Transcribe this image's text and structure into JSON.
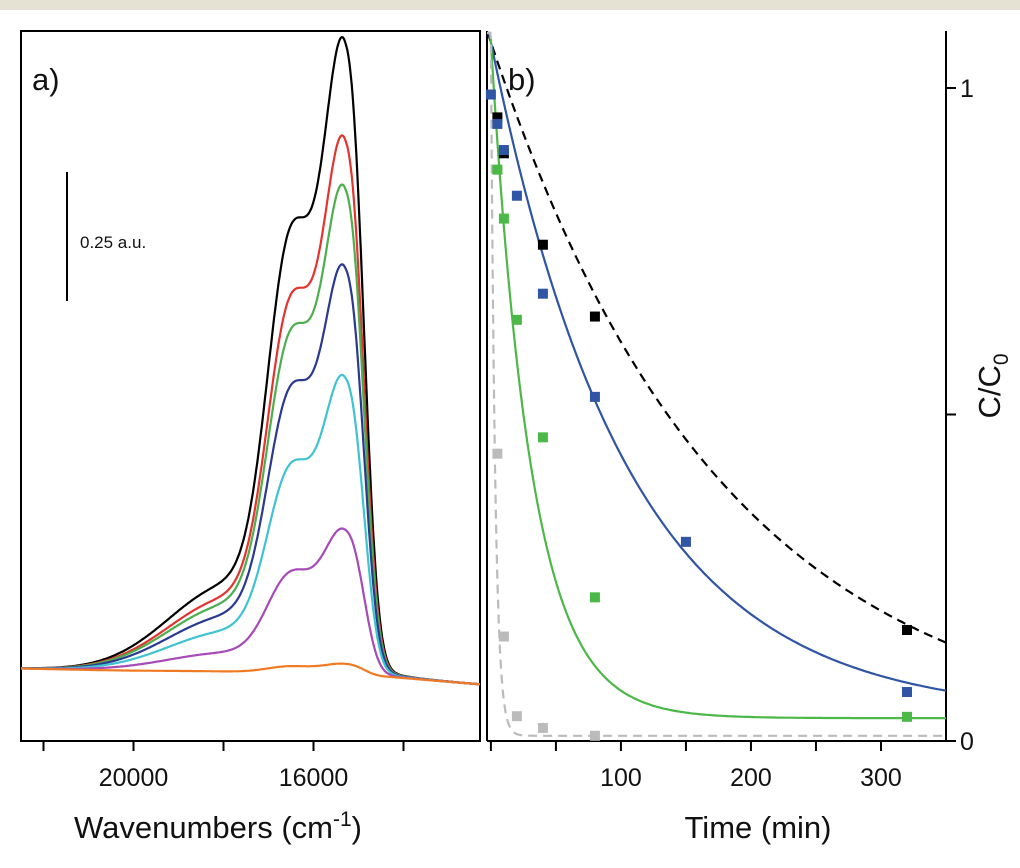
{
  "chart_data": [
    {
      "type": "line",
      "panel_label": "a)",
      "xlabel_base": "Wavenumbers (cm",
      "xlabel_sup": "-1",
      "xlabel_close": ")",
      "xlim": [
        22500,
        12300
      ],
      "x_ticks": [
        20000,
        16000
      ],
      "x_tick_labels": [
        "20000",
        "16000"
      ],
      "scale_bar_label": "0.25 a.u.",
      "colors": {
        "axis": "#000000"
      },
      "series": [
        {
          "color": "#000000",
          "peak": 1.04
        },
        {
          "color": "#e3342f",
          "peak": 0.88
        },
        {
          "color": "#4cae4c",
          "peak": 0.8
        },
        {
          "color": "#2b3990",
          "peak": 0.67
        },
        {
          "color": "#3fc3d0",
          "peak": 0.49
        },
        {
          "color": "#a64ab8",
          "peak": 0.24
        },
        {
          "color": "#f07a24",
          "peak": 0.02
        }
      ]
    },
    {
      "type": "scatter",
      "panel_label": "b)",
      "xlabel": "Time (min)",
      "ylabel_base": "C/C",
      "ylabel_sub": "0",
      "xlim": [
        -3,
        350
      ],
      "ylim": [
        0,
        1
      ],
      "x_ticks": [
        100,
        200,
        300
      ],
      "x_tick_labels": [
        "100",
        "200",
        "300"
      ],
      "y_ticks": [
        0,
        1
      ],
      "y_tick_labels": [
        "0",
        "1"
      ],
      "series": [
        {
          "color": "#000000",
          "dashed": true,
          "fit_k": 0.0056,
          "fit_c_inf": 0,
          "points": [
            [
              5,
              0.955
            ],
            [
              10,
              0.9
            ],
            [
              40,
              0.76
            ],
            [
              80,
              0.65
            ],
            [
              320,
              0.17
            ]
          ]
        },
        {
          "color": "#2f55a4",
          "dashed": false,
          "fit_k": 0.0095,
          "fit_c_inf": 0.04,
          "points": [
            [
              0,
              0.99
            ],
            [
              5,
              0.945
            ],
            [
              10,
              0.905
            ],
            [
              20,
              0.835
            ],
            [
              40,
              0.685
            ],
            [
              80,
              0.527
            ],
            [
              150,
              0.305
            ],
            [
              320,
              0.075
            ]
          ]
        },
        {
          "color": "#4cb848",
          "dashed": false,
          "fit_k": 0.032,
          "fit_c_inf": 0.035,
          "points": [
            [
              5,
              0.875
            ],
            [
              10,
              0.8
            ],
            [
              20,
              0.645
            ],
            [
              40,
              0.465
            ],
            [
              80,
              0.22
            ],
            [
              320,
              0.037
            ]
          ]
        },
        {
          "color": "#bbbbbb",
          "dashed": true,
          "fit_k": 0.3,
          "fit_c_inf": 0.008,
          "points": [
            [
              5,
              0.44
            ],
            [
              10,
              0.16
            ],
            [
              20,
              0.038
            ],
            [
              40,
              0.02
            ],
            [
              80,
              0.008
            ]
          ]
        }
      ]
    }
  ]
}
